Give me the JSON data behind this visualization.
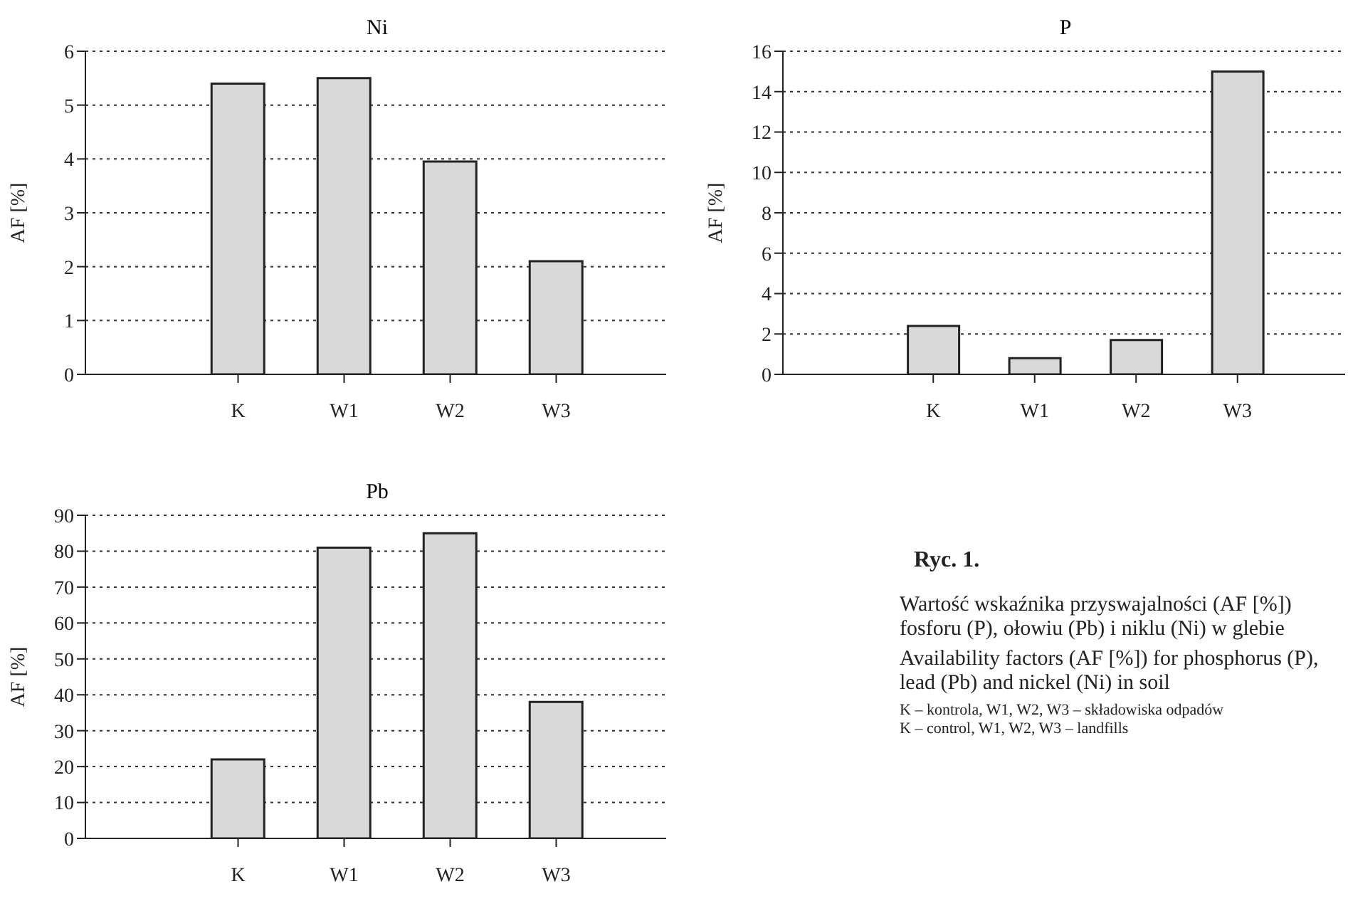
{
  "chart_data": [
    {
      "type": "bar",
      "title": "Ni",
      "ylabel": "AF [%]",
      "categories": [
        "K",
        "W1",
        "W2",
        "W3"
      ],
      "values": [
        5.4,
        5.5,
        3.95,
        2.1
      ],
      "color": "#d9d9d9",
      "ylim": [
        0,
        6
      ],
      "yticks": [
        0,
        1,
        2,
        3,
        4,
        5,
        6
      ],
      "grid": "y"
    },
    {
      "type": "bar",
      "title": "P",
      "ylabel": "AF [%]",
      "categories": [
        "K",
        "W1",
        "W2",
        "W3"
      ],
      "values": [
        2.4,
        0.8,
        1.7,
        15
      ],
      "color": "#d9d9d9",
      "ylim": [
        0,
        16
      ],
      "yticks": [
        0,
        2,
        4,
        6,
        8,
        10,
        12,
        14,
        16
      ],
      "grid": "y"
    },
    {
      "type": "bar",
      "title": "Pb",
      "ylabel": "AF [%]",
      "categories": [
        "K",
        "W1",
        "W2",
        "W3"
      ],
      "values": [
        22,
        81,
        85,
        38
      ],
      "color": "#d9d9d9",
      "ylim": [
        0,
        90
      ],
      "yticks": [
        0,
        10,
        20,
        30,
        40,
        50,
        60,
        70,
        80,
        90
      ],
      "grid": "y"
    },
    {
      "type": "other",
      "title": "Ryc. 1.",
      "annotations": [
        "Wartość wskaźnika przyswajalności (AF [%]) fosforu (P), ołowiu (Pb) i niklu (Ni) w glebie",
        "Availability factors (AF [%]) for phosphorus (P), lead (Pb) and nickel (Ni) in soil",
        "K – kontrola, W1, W2, W3 – składowiska odpadów",
        "K – control, W1, W2, W3 – landfills"
      ]
    }
  ]
}
